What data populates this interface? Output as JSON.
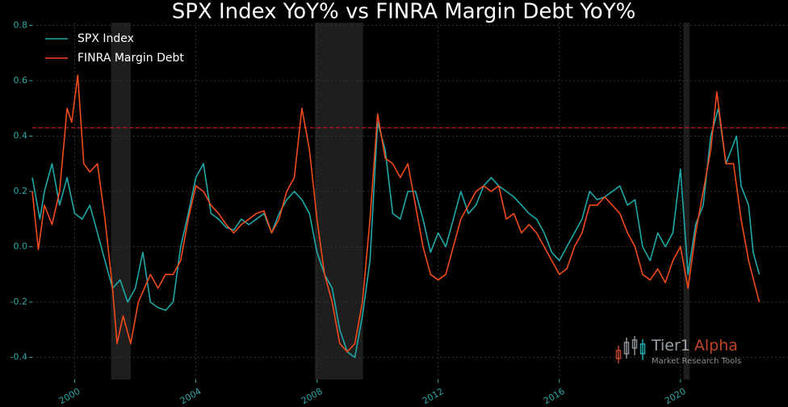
{
  "chart_data": {
    "type": "line",
    "title": "SPX Index YoY% vs FINRA Margin Debt YoY%",
    "xlim": [
      1998.6,
      2023.55
    ],
    "xticks": [
      2000,
      2004,
      2008,
      2012,
      2016,
      2020
    ],
    "ylim": [
      -0.48,
      0.81
    ],
    "yticks": [
      -0.4,
      -0.2,
      {
        "value": 0,
        "label": "0.0"
      },
      0.2,
      0.4,
      0.6,
      0.8
    ],
    "grid": true,
    "legend": "upper left",
    "reference_line": {
      "value": 0.43,
      "color": "#cc1f1f"
    },
    "recessions": [
      {
        "start": 2001.2,
        "end": 2001.85
      },
      {
        "start": 2007.93,
        "end": 2009.52
      },
      {
        "start": 2020.1,
        "end": 2020.3
      }
    ],
    "watermark": {
      "brand": "Tier1",
      "brand2": "Alpha",
      "tagline": "Market Research Tools"
    },
    "series": [
      {
        "name": "SPX Index",
        "color": "#1fa8a8",
        "x": [
          1998.6,
          1998.85,
          1999.0,
          1999.25,
          1999.5,
          1999.75,
          2000.0,
          2000.25,
          2000.5,
          2000.75,
          2001.0,
          2001.25,
          2001.5,
          2001.75,
          2002.0,
          2002.25,
          2002.5,
          2002.75,
          2003.0,
          2003.25,
          2003.5,
          2003.75,
          2004.0,
          2004.25,
          2004.5,
          2004.75,
          2005.0,
          2005.25,
          2005.5,
          2005.75,
          2006.0,
          2006.25,
          2006.5,
          2006.75,
          2007.0,
          2007.25,
          2007.5,
          2007.75,
          2008.0,
          2008.25,
          2008.5,
          2008.75,
          2009.0,
          2009.25,
          2009.5,
          2009.75,
          2010.0,
          2010.25,
          2010.5,
          2010.75,
          2011.0,
          2011.25,
          2011.5,
          2011.75,
          2012.0,
          2012.25,
          2012.5,
          2012.75,
          2013.0,
          2013.25,
          2013.5,
          2013.75,
          2014.0,
          2014.25,
          2014.5,
          2014.75,
          2015.0,
          2015.25,
          2015.5,
          2015.75,
          2016.0,
          2016.25,
          2016.5,
          2016.75,
          2017.0,
          2017.25,
          2017.5,
          2017.75,
          2018.0,
          2018.25,
          2018.5,
          2018.75,
          2019.0,
          2019.25,
          2019.5,
          2019.75,
          2020.0,
          2020.25,
          2020.5,
          2020.75,
          2021.0,
          2021.25,
          2021.5,
          2021.85,
          2022.0,
          2022.25,
          2022.4,
          2022.6
        ],
        "values": [
          0.25,
          0.1,
          0.2,
          0.3,
          0.15,
          0.25,
          0.12,
          0.1,
          0.15,
          0.05,
          -0.05,
          -0.15,
          -0.12,
          -0.2,
          -0.15,
          -0.02,
          -0.2,
          -0.22,
          -0.23,
          -0.2,
          0.0,
          0.12,
          0.25,
          0.3,
          0.12,
          0.1,
          0.07,
          0.06,
          0.1,
          0.08,
          0.1,
          0.12,
          0.05,
          0.12,
          0.17,
          0.2,
          0.17,
          0.12,
          -0.02,
          -0.1,
          -0.15,
          -0.3,
          -0.38,
          -0.4,
          -0.25,
          -0.05,
          0.45,
          0.35,
          0.12,
          0.1,
          0.2,
          0.2,
          0.1,
          -0.02,
          0.05,
          0.0,
          0.1,
          0.2,
          0.12,
          0.15,
          0.22,
          0.25,
          0.22,
          0.2,
          0.18,
          0.15,
          0.12,
          0.1,
          0.05,
          -0.02,
          -0.05,
          0.0,
          0.05,
          0.1,
          0.2,
          0.17,
          0.18,
          0.2,
          0.22,
          0.15,
          0.17,
          0.0,
          -0.05,
          0.05,
          0.0,
          0.05,
          0.28,
          -0.1,
          0.08,
          0.15,
          0.4,
          0.5,
          0.3,
          0.4,
          0.22,
          0.15,
          -0.02,
          -0.1
        ]
      },
      {
        "name": "FINRA Margin Debt",
        "color": "#f04a1a",
        "x": [
          1998.6,
          1998.8,
          1999.0,
          1999.25,
          1999.5,
          1999.75,
          1999.9,
          2000.1,
          2000.3,
          2000.5,
          2000.75,
          2001.0,
          2001.25,
          2001.4,
          2001.6,
          2001.85,
          2002.1,
          2002.3,
          2002.5,
          2002.75,
          2003.0,
          2003.25,
          2003.5,
          2003.75,
          2004.0,
          2004.25,
          2004.5,
          2004.75,
          2005.0,
          2005.25,
          2005.5,
          2005.75,
          2006.0,
          2006.25,
          2006.5,
          2006.75,
          2007.0,
          2007.25,
          2007.5,
          2007.75,
          2008.0,
          2008.25,
          2008.5,
          2008.75,
          2009.0,
          2009.25,
          2009.5,
          2009.75,
          2010.0,
          2010.25,
          2010.5,
          2010.75,
          2011.0,
          2011.25,
          2011.5,
          2011.75,
          2012.0,
          2012.25,
          2012.5,
          2012.75,
          2013.0,
          2013.25,
          2013.5,
          2013.75,
          2014.0,
          2014.25,
          2014.5,
          2014.75,
          2015.0,
          2015.25,
          2015.5,
          2015.75,
          2016.0,
          2016.25,
          2016.5,
          2016.75,
          2017.0,
          2017.25,
          2017.5,
          2017.75,
          2018.0,
          2018.25,
          2018.5,
          2018.75,
          2019.0,
          2019.25,
          2019.5,
          2019.75,
          2020.0,
          2020.25,
          2020.5,
          2020.75,
          2021.0,
          2021.2,
          2021.5,
          2021.75,
          2022.0,
          2022.25,
          2022.6
        ],
        "values": [
          0.2,
          -0.01,
          0.15,
          0.08,
          0.2,
          0.5,
          0.45,
          0.62,
          0.3,
          0.27,
          0.3,
          0.1,
          -0.15,
          -0.35,
          -0.25,
          -0.35,
          -0.2,
          -0.15,
          -0.1,
          -0.15,
          -0.1,
          -0.1,
          -0.05,
          0.1,
          0.22,
          0.2,
          0.15,
          0.12,
          0.08,
          0.05,
          0.08,
          0.1,
          0.12,
          0.13,
          0.05,
          0.1,
          0.2,
          0.25,
          0.5,
          0.35,
          0.1,
          -0.1,
          -0.2,
          -0.35,
          -0.38,
          -0.35,
          -0.2,
          0.1,
          0.48,
          0.32,
          0.3,
          0.25,
          0.3,
          0.15,
          0.0,
          -0.1,
          -0.12,
          -0.1,
          0.0,
          0.1,
          0.15,
          0.2,
          0.22,
          0.2,
          0.22,
          0.1,
          0.12,
          0.05,
          0.08,
          0.05,
          0.0,
          -0.05,
          -0.1,
          -0.08,
          0.0,
          0.05,
          0.15,
          0.15,
          0.18,
          0.15,
          0.12,
          0.05,
          0.0,
          -0.1,
          -0.12,
          -0.08,
          -0.13,
          -0.05,
          0.0,
          -0.15,
          0.05,
          0.2,
          0.35,
          0.56,
          0.3,
          0.3,
          0.1,
          -0.05,
          -0.2
        ]
      }
    ]
  }
}
